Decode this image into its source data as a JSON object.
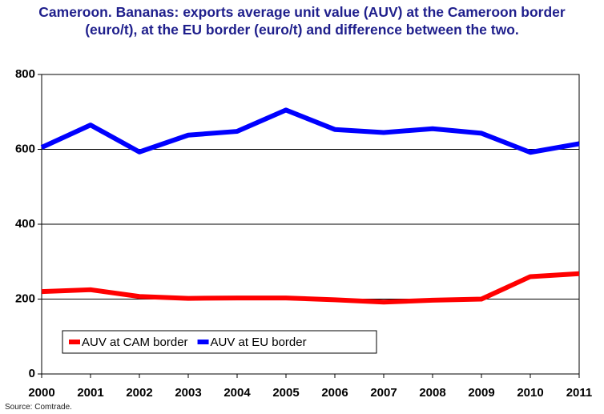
{
  "chart_data": {
    "type": "line",
    "title": "Cameroon. Bananas: exports average unit value (AUV) at the Cameroon border (euro/t), at the EU border (euro/t) and difference between the two.",
    "source": "Source: Comtrade.",
    "categories": [
      "2000",
      "2001",
      "2002",
      "2003",
      "2004",
      "2005",
      "2006",
      "2007",
      "2008",
      "2009",
      "2010",
      "2011"
    ],
    "series": [
      {
        "name": "AUV at CAM border",
        "color": "#ff0000",
        "values": [
          220,
          225,
          207,
          202,
          203,
          203,
          198,
          192,
          197,
          200,
          260,
          268
        ]
      },
      {
        "name": "AUV at EU border",
        "color": "#0000ff",
        "values": [
          605,
          665,
          593,
          638,
          648,
          705,
          653,
          645,
          655,
          643,
          592,
          615
        ]
      }
    ],
    "ylim": [
      0,
      800
    ],
    "yticks": [
      0,
      200,
      400,
      600,
      800
    ],
    "grid": true,
    "legend": "lower left"
  }
}
